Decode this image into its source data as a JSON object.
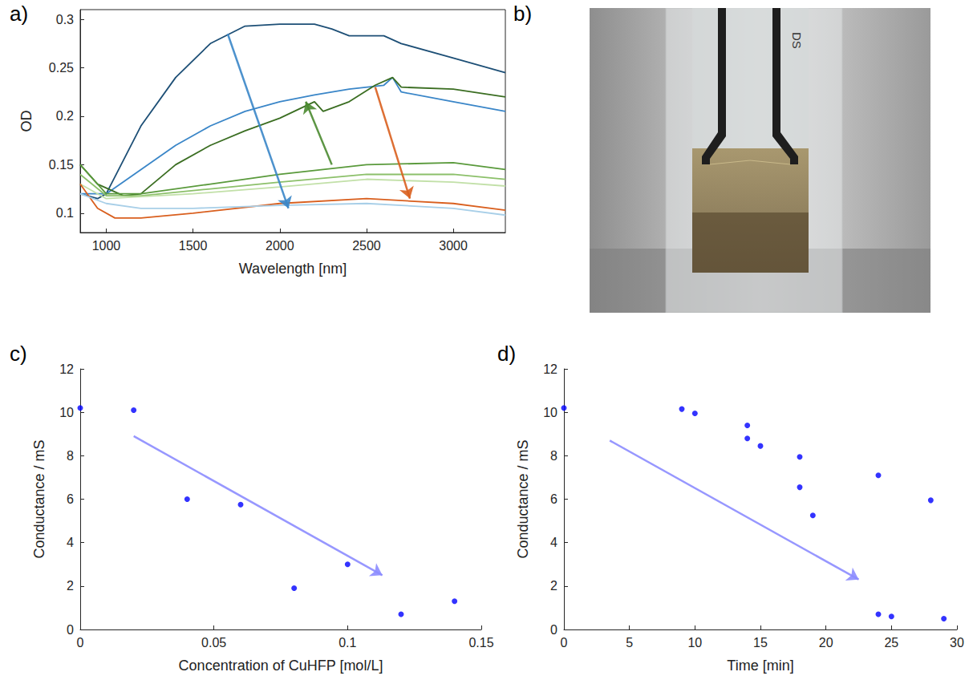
{
  "chart_data": [
    {
      "panel": "a)",
      "type": "line",
      "x_label": "Wavelength [nm]",
      "y_label": "OD",
      "xlim": [
        850,
        3300
      ],
      "xticks": [
        1000,
        1500,
        2000,
        2500,
        3000
      ],
      "ylim": [
        0.08,
        0.31
      ],
      "yticks": [
        0.1,
        0.15,
        0.2,
        0.25,
        0.3
      ],
      "grid": false,
      "series": [
        {
          "color": "#1d4f76",
          "x": [
            850,
            950,
            1000,
            1200,
            1400,
            1600,
            1800,
            2000,
            2200,
            2300,
            2400,
            2600,
            2700,
            3000,
            3300
          ],
          "values": [
            0.12,
            0.115,
            0.12,
            0.19,
            0.24,
            0.275,
            0.293,
            0.295,
            0.295,
            0.29,
            0.283,
            0.283,
            0.275,
            0.26,
            0.245
          ]
        },
        {
          "color": "#3a86c8",
          "x": [
            850,
            1000,
            1200,
            1400,
            1600,
            1800,
            2000,
            2200,
            2400,
            2600,
            2650,
            2700,
            3000,
            3300
          ],
          "values": [
            0.12,
            0.12,
            0.145,
            0.17,
            0.19,
            0.205,
            0.215,
            0.222,
            0.228,
            0.232,
            0.24,
            0.225,
            0.215,
            0.205
          ]
        },
        {
          "color": "#3b6e22",
          "x": [
            850,
            950,
            1100,
            1200,
            1400,
            1600,
            1800,
            2000,
            2200,
            2250,
            2400,
            2550,
            2650,
            2700,
            3000,
            3300
          ],
          "values": [
            0.15,
            0.13,
            0.118,
            0.12,
            0.15,
            0.17,
            0.185,
            0.198,
            0.215,
            0.205,
            0.215,
            0.232,
            0.24,
            0.23,
            0.228,
            0.22
          ]
        },
        {
          "color": "#5a9a3c",
          "x": [
            850,
            1000,
            1200,
            1600,
            2000,
            2500,
            3000,
            3300
          ],
          "values": [
            0.15,
            0.12,
            0.12,
            0.13,
            0.14,
            0.15,
            0.152,
            0.145
          ]
        },
        {
          "color": "#8cc06a",
          "x": [
            850,
            1000,
            1200,
            1600,
            2000,
            2500,
            3000,
            3300
          ],
          "values": [
            0.14,
            0.118,
            0.118,
            0.125,
            0.132,
            0.14,
            0.14,
            0.135
          ]
        },
        {
          "color": "#c2e0a8",
          "x": [
            850,
            1000,
            1500,
            2000,
            2500,
            3000,
            3300
          ],
          "values": [
            0.13,
            0.115,
            0.12,
            0.127,
            0.135,
            0.132,
            0.128
          ]
        },
        {
          "color": "#d95f1e",
          "x": [
            850,
            950,
            1050,
            1200,
            1500,
            2000,
            2500,
            3000,
            3300
          ],
          "values": [
            0.13,
            0.105,
            0.095,
            0.095,
            0.1,
            0.11,
            0.115,
            0.11,
            0.103
          ]
        },
        {
          "color": "#a8cfe8",
          "x": [
            850,
            1000,
            1200,
            1500,
            2000,
            2500,
            3000,
            3300
          ],
          "values": [
            0.12,
            0.11,
            0.105,
            0.105,
            0.108,
            0.11,
            0.105,
            0.098
          ]
        }
      ],
      "annotations": [
        {
          "type": "arrow",
          "from": [
            1700,
            0.285
          ],
          "to": [
            2050,
            0.105
          ],
          "color": "#3a86c8"
        },
        {
          "type": "arrow",
          "from": [
            2300,
            0.15
          ],
          "to": [
            2150,
            0.215
          ],
          "color": "#4a8a30"
        },
        {
          "type": "arrow",
          "from": [
            2550,
            0.23
          ],
          "to": [
            2750,
            0.115
          ],
          "color": "#d95f1e"
        }
      ]
    },
    {
      "panel": "b)",
      "type": "photo",
      "text": "DS"
    },
    {
      "panel": "c)",
      "type": "scatter",
      "x_label": "Concentration of CuHFP [mol/L]",
      "y_label": "Conductance / mS",
      "xlim": [
        0,
        0.15
      ],
      "xticks": [
        0,
        0.05,
        0.1,
        0.15
      ],
      "ylim": [
        0,
        12
      ],
      "yticks": [
        0,
        2,
        4,
        6,
        8,
        10,
        12
      ],
      "grid": false,
      "color": "#0000ff",
      "marker": "circle",
      "x": [
        0,
        0.02,
        0.04,
        0.06,
        0.08,
        0.1,
        0.12,
        0.14
      ],
      "values": [
        10.2,
        10.1,
        6.0,
        5.75,
        1.9,
        3.0,
        0.7,
        1.3
      ],
      "annotations": [
        {
          "type": "arrow",
          "from": [
            0.02,
            8.9
          ],
          "to": [
            0.113,
            2.5
          ],
          "color": "#8c8cff"
        }
      ]
    },
    {
      "panel": "d)",
      "type": "scatter",
      "x_label": "Time [min]",
      "y_label": "Conductance / mS",
      "xlim": [
        0,
        30
      ],
      "xticks": [
        0,
        5,
        10,
        15,
        20,
        25,
        30
      ],
      "ylim": [
        0,
        12
      ],
      "yticks": [
        0,
        2,
        4,
        6,
        8,
        10,
        12
      ],
      "grid": false,
      "color": "#0000ff",
      "marker": "circle",
      "x": [
        0,
        9,
        10,
        14,
        14,
        15,
        18,
        18,
        19,
        24,
        24,
        25,
        28,
        29
      ],
      "values": [
        10.2,
        10.15,
        9.95,
        9.4,
        8.8,
        8.45,
        7.95,
        6.55,
        5.25,
        7.1,
        0.7,
        0.6,
        5.95,
        0.5
      ],
      "annotations": [
        {
          "type": "arrow",
          "from": [
            3.5,
            8.7
          ],
          "to": [
            22.5,
            2.3
          ],
          "color": "#8c8cff"
        }
      ]
    }
  ]
}
